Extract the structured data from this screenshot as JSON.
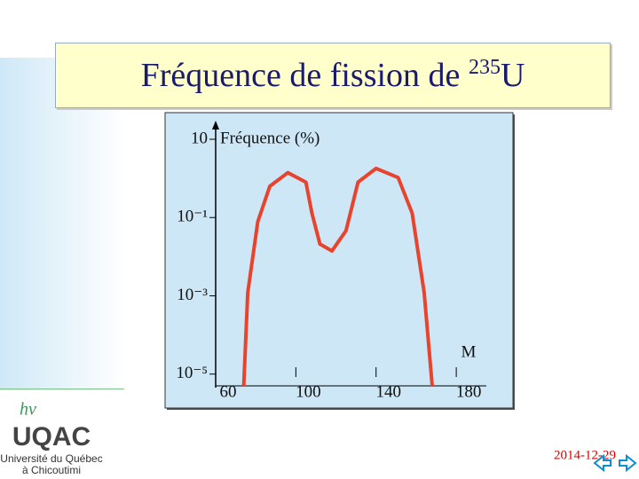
{
  "slide": {
    "title": [
      "Fréquence de fission de ",
      "235",
      "U"
    ],
    "logo": [
      "hν",
      "UQAC",
      "Université du Québec",
      "à Chicoutimi"
    ],
    "date": "2014-12-29"
  },
  "chart_data": {
    "type": "line",
    "y_label": "Fréquence (%)",
    "x_label": "M",
    "x": [
      74,
      76,
      81,
      87,
      96,
      105,
      108,
      112,
      118,
      125,
      131,
      140,
      151,
      158,
      164,
      168
    ],
    "series": [
      {
        "color": "#e8432d",
        "values": [
          5e-06,
          0.0012,
          0.078,
          0.63,
          1.4,
          0.8,
          0.13,
          0.021,
          0.014,
          0.046,
          0.8,
          1.8,
          1.05,
          0.13,
          0.0012,
          5e-06
        ]
      }
    ],
    "xlim": [
      60,
      195
    ],
    "xticks": [
      60,
      100,
      140,
      180
    ],
    "ylim": [
      5e-06,
      10
    ],
    "log_y": true,
    "yticks": [
      10,
      {
        "value": 0.1,
        "label": "10⁻¹"
      },
      {
        "value": 0.001,
        "label": "10⁻³"
      },
      {
        "value": 1e-05,
        "label": "10⁻⁵"
      }
    ],
    "grid": false
  }
}
